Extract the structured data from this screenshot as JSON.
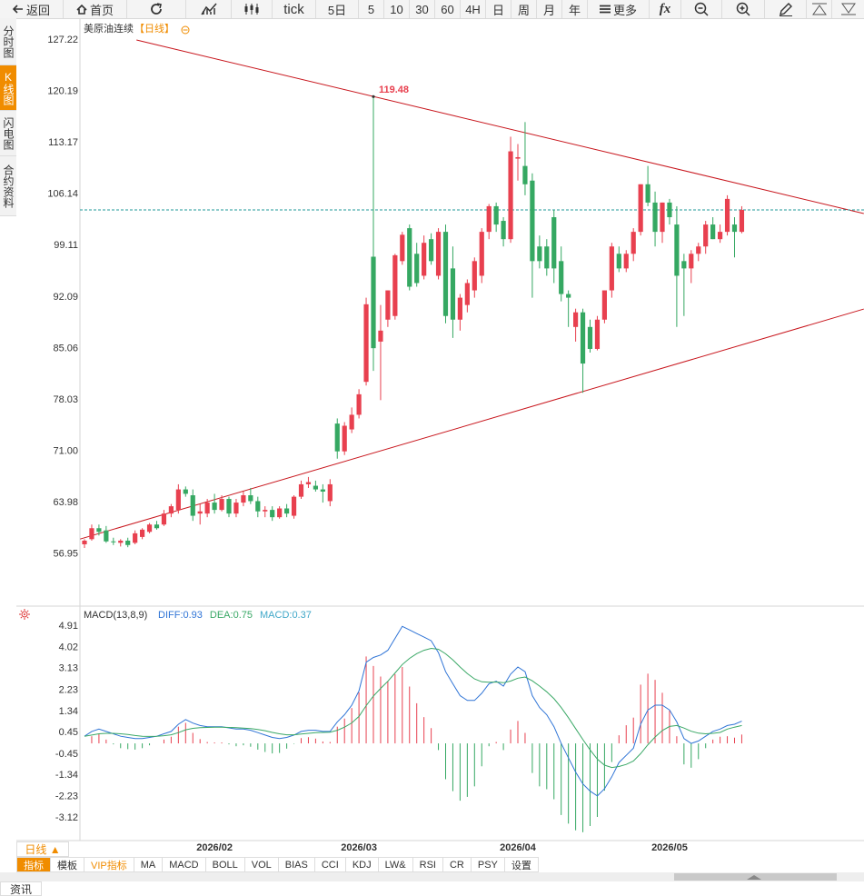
{
  "toolbar": [
    "返回",
    "首页",
    "tick",
    "5日",
    "5",
    "10",
    "30",
    "60",
    "4H",
    "日",
    "周",
    "月",
    "年",
    "更多",
    "fx"
  ],
  "side_tabs": [
    "分时图",
    "K线图",
    "闪电图",
    "合约资料"
  ],
  "period_button": "日线 ▲",
  "indicator_tabs": [
    "指标",
    "模板",
    "VIP指标",
    "MA",
    "MACD",
    "BOLL",
    "VOL",
    "BIAS",
    "CCI",
    "KDJ",
    "LW&",
    "RSI",
    "CR",
    "PSY",
    "设置"
  ],
  "news_tab": "资讯",
  "chart_data": [
    {
      "type": "candlestick",
      "title": "美原油连续",
      "subtitle": "【日线】",
      "up_color": "#e8404f",
      "down_color": "#35a862",
      "price_line_color": "#1f9a9a",
      "trend_color": "#c8161d",
      "ylim": [
        50.1,
        129.95
      ],
      "yticks": [
        127.22,
        120.19,
        113.17,
        106.14,
        99.11,
        92.09,
        85.06,
        78.03,
        {
          "value": 71,
          "label": "71.00"
        },
        63.98,
        56.95
      ],
      "categories": [
        null,
        null,
        null,
        null,
        null,
        null,
        null,
        null,
        null,
        null,
        null,
        null,
        null,
        null,
        null,
        null,
        null,
        null,
        "2026/02",
        null,
        null,
        null,
        null,
        null,
        null,
        null,
        null,
        null,
        null,
        null,
        null,
        null,
        null,
        null,
        null,
        null,
        null,
        null,
        "2026/03",
        null,
        null,
        null,
        null,
        null,
        null,
        null,
        null,
        null,
        null,
        null,
        null,
        null,
        null,
        null,
        null,
        null,
        null,
        null,
        null,
        null,
        "2026/04",
        null,
        null,
        null,
        null,
        null,
        null,
        null,
        null,
        null,
        null,
        null,
        null,
        null,
        null,
        null,
        null,
        null,
        null,
        null,
        null,
        "2026/05",
        null,
        null,
        null,
        null,
        null,
        null,
        null,
        null,
        null,
        null
      ],
      "ohlc": [
        [
          58.3,
          59,
          57.8,
          58.8
        ],
        [
          59,
          61,
          58.8,
          60.5
        ],
        [
          60.5,
          61,
          59.5,
          60
        ],
        [
          60.2,
          60.8,
          58.5,
          58.7
        ],
        [
          58.7,
          59.2,
          58.2,
          58.6
        ],
        [
          58.5,
          59,
          58,
          58.8
        ],
        [
          58.8,
          59.2,
          57.9,
          58.2
        ],
        [
          58.5,
          60.2,
          58.3,
          59.8
        ],
        [
          59.3,
          60.5,
          59,
          60.3
        ],
        [
          60,
          61.2,
          59.8,
          61
        ],
        [
          61,
          61.5,
          60.3,
          60.5
        ],
        [
          61,
          63,
          60.8,
          62.5
        ],
        [
          62.5,
          63.8,
          62,
          63.5
        ],
        [
          63,
          66.5,
          62.5,
          65.8
        ],
        [
          65.8,
          66.2,
          64.8,
          65.2
        ],
        [
          65,
          65.8,
          61.5,
          62.2
        ],
        [
          62.5,
          63.8,
          61,
          62.8
        ],
        [
          62.5,
          64.5,
          62,
          64
        ],
        [
          64,
          65.2,
          62.5,
          63
        ],
        [
          63,
          65,
          62.8,
          64.5
        ],
        [
          64.5,
          64.8,
          62,
          62.5
        ],
        [
          62.5,
          64.5,
          62,
          64
        ],
        [
          64,
          65.5,
          63.5,
          65
        ],
        [
          65,
          66,
          63.8,
          64.2
        ],
        [
          64.2,
          64.8,
          62,
          62.8
        ],
        [
          62.8,
          63.5,
          62,
          63
        ],
        [
          63,
          63.5,
          61.5,
          62
        ],
        [
          62,
          63.5,
          61.8,
          63.2
        ],
        [
          63.2,
          63.8,
          62,
          62.5
        ],
        [
          62.2,
          65,
          61.8,
          64.8
        ],
        [
          64.8,
          67,
          64.5,
          66.5
        ],
        [
          66.5,
          67.5,
          66,
          66.8
        ],
        [
          66.3,
          67,
          65.5,
          65.8
        ],
        [
          65.8,
          66.5,
          64,
          65.5
        ],
        [
          64.2,
          67.2,
          63.5,
          66.5
        ],
        [
          74.8,
          75.5,
          70,
          71
        ],
        [
          71,
          75,
          70.5,
          74.5
        ],
        [
          74,
          77,
          73.5,
          76
        ],
        [
          76,
          79.5,
          75.5,
          78.8
        ],
        [
          80.5,
          92,
          80,
          91.1
        ],
        [
          97.6,
          119.48,
          82,
          85.1
        ],
        [
          86,
          91,
          78,
          87.5
        ],
        [
          89,
          93,
          88,
          93
        ],
        [
          89.5,
          98,
          89,
          97.8
        ],
        [
          97,
          101,
          96.5,
          100.6
        ],
        [
          101.5,
          102,
          93,
          93.5
        ],
        [
          98,
          99.5,
          93.5,
          94
        ],
        [
          95,
          100.5,
          94.5,
          99.5
        ],
        [
          100,
          100.8,
          96.5,
          97
        ],
        [
          95,
          101.5,
          94.5,
          101
        ],
        [
          101,
          102,
          88.5,
          89.5
        ],
        [
          96,
          99,
          86.5,
          89
        ],
        [
          89,
          92.5,
          87.5,
          92
        ],
        [
          91,
          94.5,
          90,
          94
        ],
        [
          93,
          97.5,
          92,
          97
        ],
        [
          95,
          101.5,
          94,
          101
        ],
        [
          101,
          104.8,
          100,
          104.5
        ],
        [
          104.5,
          105,
          101,
          102
        ],
        [
          102.5,
          103,
          99,
          100
        ],
        [
          100,
          114,
          99.5,
          112
        ],
        [
          111,
          113,
          108,
          111.2
        ],
        [
          110,
          116,
          106,
          107.5
        ],
        [
          108,
          109,
          92,
          97
        ],
        [
          99,
          100.5,
          96,
          97
        ],
        [
          99,
          100,
          95,
          96
        ],
        [
          103,
          104,
          94,
          96
        ],
        [
          97,
          99,
          91.5,
          92.5
        ],
        [
          92.5,
          93,
          88,
          92
        ],
        [
          88,
          90.5,
          86,
          90
        ],
        [
          90,
          90.5,
          79,
          83
        ],
        [
          88,
          89,
          84.5,
          85
        ],
        [
          85,
          89.5,
          84.8,
          89
        ],
        [
          89,
          93,
          88.5,
          93
        ],
        [
          93,
          99.5,
          92,
          99
        ],
        [
          98,
          99,
          95.5,
          96
        ],
        [
          96,
          98.5,
          95.5,
          98
        ],
        [
          98,
          101.5,
          97,
          101
        ],
        [
          101,
          107.5,
          100.5,
          107.5
        ],
        [
          107.5,
          110,
          104.5,
          105
        ],
        [
          105,
          106.5,
          99,
          101
        ],
        [
          101,
          105,
          99.5,
          105
        ],
        [
          105,
          105.5,
          102,
          103
        ],
        [
          102,
          104.5,
          88,
          95
        ],
        [
          97,
          98,
          89.5,
          96
        ],
        [
          96,
          98.5,
          94,
          98
        ],
        [
          98,
          99.5,
          97,
          99
        ],
        [
          99,
          102.5,
          98,
          102
        ],
        [
          102,
          103,
          100,
          100
        ],
        [
          100,
          102,
          99.5,
          101
        ],
        [
          101,
          106,
          100.5,
          105.5
        ],
        [
          102,
          103,
          97.5,
          101
        ],
        [
          101,
          104.5,
          100.8,
          104
        ]
      ],
      "high_label": {
        "index": 40,
        "label": "119.48"
      },
      "trendlines": [
        {
          "points": [
            [
              7.2,
              127.22
            ],
            [
              107.9,
              103.5
            ]
          ]
        },
        {
          "points": [
            [
              -0.6,
              59.02
            ],
            [
              107.9,
              90.45
            ]
          ]
        }
      ]
    },
    {
      "type": "macd",
      "title": "MACD(13,8,9)",
      "ylim": [
        -4.07,
        5.14
      ],
      "yticks": [
        4.91,
        4.02,
        3.13,
        2.23,
        1.34,
        0.45,
        -0.45,
        -1.34,
        -2.23,
        -3.12
      ],
      "series": [
        {
          "legend": "DIFF:0.93",
          "color": "#2f74d6",
          "values": [
            0.3,
            0.5,
            0.6,
            0.5,
            0.4,
            0.3,
            0.25,
            0.2,
            0.2,
            0.25,
            0.3,
            0.4,
            0.5,
            0.8,
            1.0,
            0.85,
            0.75,
            0.7,
            0.7,
            0.7,
            0.65,
            0.6,
            0.6,
            0.55,
            0.45,
            0.35,
            0.25,
            0.2,
            0.25,
            0.35,
            0.5,
            0.55,
            0.55,
            0.5,
            0.5,
            0.9,
            1.2,
            1.6,
            2.2,
            3.4,
            3.6,
            3.7,
            3.9,
            4.4,
            4.9,
            4.75,
            4.6,
            4.45,
            4.3,
            3.8,
            3.0,
            2.5,
            2.0,
            1.8,
            1.8,
            2.1,
            2.5,
            2.6,
            2.4,
            2.9,
            3.2,
            3.0,
            2.0,
            1.5,
            1.2,
            0.7,
            0,
            -0.6,
            -1.2,
            -1.7,
            -2.0,
            -2.2,
            -1.9,
            -1.4,
            -0.8,
            -0.5,
            -0.2,
            0.8,
            1.4,
            1.6,
            1.6,
            1.4,
            0.9,
            0.2,
            0,
            0.1,
            0.3,
            0.5,
            0.6,
            0.75,
            0.8,
            0.93
          ]
        },
        {
          "legend": "DEA:0.75",
          "color": "#3aa866",
          "values": [
            0.3,
            0.35,
            0.4,
            0.42,
            0.42,
            0.4,
            0.37,
            0.33,
            0.3,
            0.29,
            0.3,
            0.32,
            0.36,
            0.45,
            0.57,
            0.63,
            0.66,
            0.67,
            0.68,
            0.68,
            0.67,
            0.66,
            0.64,
            0.62,
            0.58,
            0.53,
            0.46,
            0.4,
            0.36,
            0.36,
            0.39,
            0.42,
            0.45,
            0.46,
            0.47,
            0.55,
            0.68,
            0.86,
            1.13,
            1.58,
            1.98,
            2.3,
            2.6,
            2.95,
            3.3,
            3.56,
            3.76,
            3.9,
            3.98,
            3.94,
            3.75,
            3.5,
            3.2,
            2.92,
            2.7,
            2.58,
            2.56,
            2.57,
            2.54,
            2.61,
            2.73,
            2.78,
            2.62,
            2.4,
            2.16,
            1.87,
            1.5,
            1.08,
            0.62,
            0.16,
            -0.27,
            -0.66,
            -0.91,
            -1.01,
            -0.97,
            -0.88,
            -0.74,
            -0.43,
            -0.06,
            0.27,
            0.54,
            0.71,
            0.75,
            0.64,
            0.51,
            0.43,
            0.4,
            0.42,
            0.46,
            0.6,
            0.68,
            0.75
          ]
        }
      ],
      "histogram": {
        "legend": "MACD:0.37",
        "color": "#3fa7c8",
        "up_color": "#e8404f",
        "down_color": "#35a862",
        "values": [
          0,
          0.3,
          0.4,
          0.16,
          -0.04,
          -0.2,
          -0.24,
          -0.26,
          -0.2,
          -0.08,
          0,
          0.16,
          0.28,
          0.7,
          0.86,
          0.44,
          0.18,
          0.06,
          0.04,
          0.04,
          -0.04,
          -0.12,
          -0.08,
          -0.14,
          -0.26,
          -0.36,
          -0.42,
          -0.4,
          -0.22,
          -0.02,
          0.22,
          0.26,
          0.2,
          0.08,
          0.06,
          0.7,
          1.04,
          1.48,
          2.14,
          3.64,
          3.24,
          2.8,
          2.6,
          2.9,
          3.2,
          2.38,
          1.68,
          1.1,
          0.64,
          -0.28,
          -1.5,
          -2.0,
          -2.4,
          -2.24,
          -1.8,
          -0.96,
          -0.12,
          0.06,
          -0.28,
          0.58,
          0.94,
          0.44,
          -1.24,
          -1.8,
          -1.92,
          -2.34,
          -3.0,
          -3.36,
          -3.64,
          -3.72,
          -3.46,
          -3.08,
          -1.98,
          -0.78,
          0.34,
          0.76,
          1.08,
          2.46,
          2.92,
          2.66,
          2.12,
          1.38,
          0.3,
          -0.88,
          -1.02,
          -0.66,
          -0.2,
          0.16,
          0.28,
          0.3,
          0.24,
          0.37
        ]
      }
    }
  ]
}
